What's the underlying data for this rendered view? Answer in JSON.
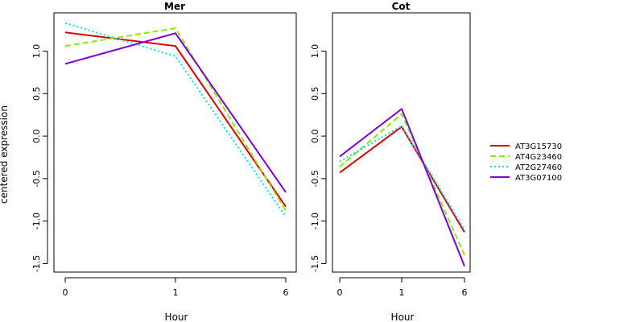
{
  "chart_data": [
    {
      "type": "line",
      "title": "Mer",
      "xlabel": "Hour",
      "ylabel": "centered expression",
      "categories": [
        "0",
        "1",
        "6"
      ],
      "ylim": [
        -1.6,
        1.45
      ],
      "yticks": [
        "1.0",
        "0.5",
        "0.0",
        "-0.5",
        "-1.0",
        "-1.5"
      ],
      "series": [
        {
          "name": "AT3G15730",
          "values": [
            1.22,
            1.06,
            -0.83
          ],
          "color": "#dd0000",
          "dash": "solid"
        },
        {
          "name": "AT4G23460",
          "values": [
            1.06,
            1.27,
            -0.88
          ],
          "color": "#88ee00",
          "dash": "dashed"
        },
        {
          "name": "AT2G27460",
          "values": [
            1.33,
            0.94,
            -0.95
          ],
          "color": "#00e5ee",
          "dash": "dotted"
        },
        {
          "name": "AT3G07100",
          "values": [
            0.85,
            1.21,
            -0.66
          ],
          "color": "#7a00dd",
          "dash": "solid"
        }
      ]
    },
    {
      "type": "line",
      "title": "Cot",
      "xlabel": "Hour",
      "ylabel": "",
      "categories": [
        "0",
        "1",
        "6"
      ],
      "ylim": [
        -1.6,
        1.45
      ],
      "yticks": [
        "1.0",
        "0.5",
        "0.0",
        "-0.5",
        "-1.0",
        "-1.5"
      ],
      "series": [
        {
          "name": "AT3G15730",
          "values": [
            -0.43,
            0.11,
            -1.13
          ],
          "color": "#dd0000",
          "dash": "solid"
        },
        {
          "name": "AT4G23460",
          "values": [
            -0.36,
            0.26,
            -1.4
          ],
          "color": "#88ee00",
          "dash": "dashed"
        },
        {
          "name": "AT2G27460",
          "values": [
            -0.3,
            0.12,
            -1.1
          ],
          "color": "#00e5ee",
          "dash": "dotted"
        },
        {
          "name": "AT3G07100",
          "values": [
            -0.24,
            0.32,
            -1.53
          ],
          "color": "#7a00dd",
          "dash": "solid"
        }
      ]
    }
  ],
  "legend": [
    {
      "label": "AT3G15730",
      "color": "#dd0000",
      "dash": "solid"
    },
    {
      "label": "AT4G23460",
      "color": "#88ee00",
      "dash": "dashed"
    },
    {
      "label": "AT2G27460",
      "color": "#00e5ee",
      "dash": "dotted"
    },
    {
      "label": "AT3G07100",
      "color": "#7a00dd",
      "dash": "solid"
    }
  ]
}
